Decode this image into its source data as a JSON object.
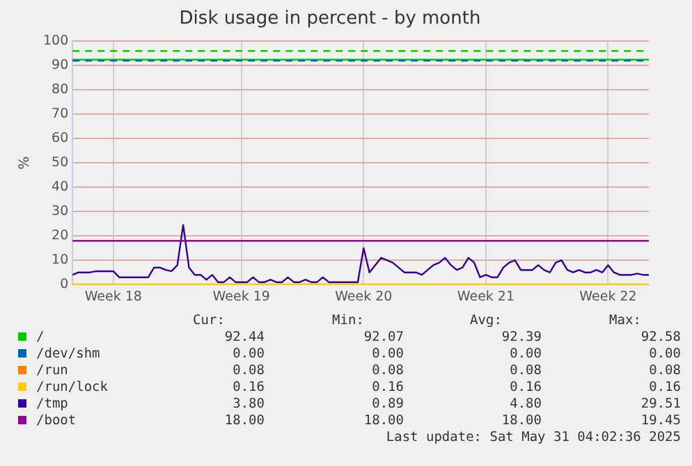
{
  "chart_data": {
    "type": "line",
    "title": "Disk usage in percent - by month",
    "ylabel": "%",
    "categories": [
      null,
      null,
      null,
      null,
      null,
      null,
      null,
      "Week 18",
      null,
      null,
      null,
      null,
      null,
      null,
      null,
      null,
      null,
      null,
      null,
      null,
      null,
      null,
      null,
      null,
      null,
      null,
      null,
      null,
      null,
      "Week 19",
      null,
      null,
      null,
      null,
      null,
      null,
      null,
      null,
      null,
      null,
      null,
      null,
      null,
      null,
      null,
      null,
      null,
      null,
      null,
      null,
      "Week 20",
      null,
      null,
      null,
      null,
      null,
      null,
      null,
      null,
      null,
      null,
      null,
      null,
      null,
      null,
      null,
      null,
      null,
      null,
      null,
      null,
      "Week 21",
      null,
      null,
      null,
      null,
      null,
      null,
      null,
      null,
      null,
      null,
      null,
      null,
      null,
      null,
      null,
      null,
      null,
      null,
      null,
      null,
      "Week 22",
      null,
      null,
      null,
      null,
      null,
      null,
      null
    ],
    "ylim": [
      0,
      100
    ],
    "yticks": [
      0,
      10,
      20,
      30,
      40,
      50,
      60,
      70,
      80,
      90,
      100
    ],
    "grid": true,
    "legend": "bottom",
    "marker": "none",
    "line_style": "solid",
    "series": [
      {
        "name": "/",
        "color": "#00cc00",
        "values": [
          92.4,
          92.4,
          92.4,
          92.4,
          92.4,
          92.4,
          92.4,
          92.4,
          92.4,
          92.4,
          92.4,
          92.4,
          92.4,
          92.4,
          92.4,
          92.4,
          92.4,
          92.4,
          92.4,
          92.4,
          92.4,
          92.4,
          92.4,
          92.4,
          92.4,
          92.4,
          92.4,
          92.4,
          92.4,
          92.4,
          92.4,
          92.4,
          92.4,
          92.4,
          92.4,
          92.4,
          92.4,
          92.4,
          92.4,
          92.4,
          92.4,
          92.4,
          92.4,
          92.4,
          92.4,
          92.4,
          92.4,
          92.4,
          92.4,
          92.4,
          92.4,
          92.4,
          92.4,
          92.4,
          92.4,
          92.4,
          92.4,
          92.4,
          92.4,
          92.4,
          92.4,
          92.4,
          92.4,
          92.4,
          92.4,
          92.4,
          92.4,
          92.4,
          92.4,
          92.4,
          92.4,
          92.4,
          92.4,
          92.4,
          92.4,
          92.4,
          92.4,
          92.4,
          92.4,
          92.4,
          92.4,
          92.4,
          92.4,
          92.4,
          92.4,
          92.4,
          92.4,
          92.4,
          92.4,
          92.4,
          92.4,
          92.4,
          92.4,
          92.4,
          92.4,
          92.4,
          92.4,
          92.4,
          92.4,
          92.4
        ]
      },
      {
        "name": "/dev/shm",
        "color": "#0066b3",
        "values": [
          null,
          null,
          null,
          null,
          null,
          null,
          null,
          null,
          null,
          null,
          null,
          null,
          null,
          null,
          null,
          null,
          null,
          null,
          null,
          null,
          null,
          null,
          null,
          null,
          null,
          null,
          null,
          null,
          null,
          null,
          null,
          null,
          null,
          null,
          null,
          null,
          null,
          null,
          null,
          null,
          null,
          null,
          null,
          null,
          null,
          null,
          null,
          null,
          null,
          null,
          null,
          null,
          null,
          null,
          null,
          null,
          null,
          null,
          null,
          null,
          null,
          null,
          null,
          null,
          null,
          null,
          null,
          null,
          null,
          null,
          null,
          null,
          null,
          null,
          null,
          null,
          null,
          null,
          null,
          null,
          null,
          null,
          null,
          null,
          null,
          null,
          null,
          null,
          null,
          null,
          null,
          null,
          null,
          null,
          null,
          null,
          null,
          null,
          null,
          null
        ]
      },
      {
        "name": "/run",
        "color": "#ff8000",
        "values": [
          null,
          null,
          null,
          null,
          null,
          null,
          null,
          null,
          null,
          null,
          null,
          null,
          null,
          null,
          null,
          null,
          null,
          null,
          null,
          null,
          null,
          null,
          null,
          null,
          null,
          null,
          null,
          null,
          null,
          null,
          null,
          null,
          null,
          null,
          null,
          null,
          null,
          null,
          null,
          null,
          null,
          null,
          null,
          null,
          null,
          null,
          null,
          null,
          null,
          null,
          null,
          null,
          null,
          null,
          null,
          null,
          null,
          null,
          null,
          null,
          null,
          null,
          null,
          null,
          null,
          null,
          null,
          null,
          null,
          null,
          null,
          null,
          null,
          null,
          null,
          null,
          null,
          null,
          null,
          null,
          null,
          null,
          null,
          null,
          null,
          null,
          null,
          null,
          null,
          null,
          null,
          null,
          null,
          null,
          null,
          null,
          null,
          null,
          null,
          null
        ]
      },
      {
        "name": "/run/lock",
        "color": "#ffcc00",
        "values": [
          0.16,
          0.16,
          0.16,
          0.16,
          0.16,
          0.16,
          0.16,
          0.16,
          0.16,
          0.16,
          0.16,
          0.16,
          0.16,
          0.16,
          0.16,
          0.16,
          0.16,
          0.16,
          0.16,
          0.16,
          0.16,
          0.16,
          0.16,
          0.16,
          0.16,
          0.16,
          0.16,
          0.16,
          0.16,
          0.16,
          0.16,
          0.16,
          0.16,
          0.16,
          0.16,
          0.16,
          0.16,
          0.16,
          0.16,
          0.16,
          0.16,
          0.16,
          0.16,
          0.16,
          0.16,
          0.16,
          0.16,
          0.16,
          0.16,
          0.16,
          0.16,
          0.16,
          0.16,
          0.16,
          0.16,
          0.16,
          0.16,
          0.16,
          0.16,
          0.16,
          0.16,
          0.16,
          0.16,
          0.16,
          0.16,
          0.16,
          0.16,
          0.16,
          0.16,
          0.16,
          0.16,
          0.16,
          0.16,
          0.16,
          0.16,
          0.16,
          0.16,
          0.16,
          0.16,
          0.16,
          0.16,
          0.16,
          0.16,
          0.16,
          0.16,
          0.16,
          0.16,
          0.16,
          0.16,
          0.16,
          0.16,
          0.16,
          0.16,
          0.16,
          0.16,
          0.16,
          0.16,
          0.16,
          0.16,
          0.16
        ]
      },
      {
        "name": "/tmp",
        "color": "#330099",
        "values": [
          4,
          5,
          5,
          5,
          5.5,
          5.5,
          5.5,
          5.5,
          3,
          3,
          3,
          3,
          3,
          3,
          7,
          7,
          6,
          5.5,
          8,
          24.5,
          7,
          4,
          4,
          2,
          4,
          1,
          1,
          3,
          1,
          1,
          1,
          3,
          1,
          1,
          2,
          1,
          1,
          3,
          1,
          1,
          2,
          1,
          1,
          3,
          1,
          1,
          1,
          1,
          1,
          1,
          15,
          5,
          8,
          11,
          10,
          9,
          7,
          5,
          5,
          5,
          4,
          6,
          8,
          9,
          11,
          8,
          6,
          7,
          11,
          9,
          3,
          4,
          3,
          3,
          7,
          9,
          10,
          6,
          6,
          6,
          8,
          6,
          5,
          9,
          10,
          6,
          5,
          6,
          5,
          5,
          6,
          5,
          8,
          5,
          4,
          4,
          4,
          4.5,
          4,
          4
        ]
      },
      {
        "name": "/boot",
        "color": "#990099",
        "values": [
          18,
          18,
          18,
          18,
          18,
          18,
          18,
          18,
          18,
          18,
          18,
          18,
          18,
          18,
          18,
          18,
          18,
          18,
          18,
          18,
          18,
          18,
          18,
          18,
          18,
          18,
          18,
          18,
          18,
          18,
          18,
          18,
          18,
          18,
          18,
          18,
          18,
          18,
          18,
          18,
          18,
          18,
          18,
          18,
          18,
          18,
          18,
          18,
          18,
          18,
          18,
          18,
          18,
          18,
          18,
          18,
          18,
          18,
          18,
          18,
          18,
          18,
          18,
          18,
          18,
          18,
          18,
          18,
          18,
          18,
          18,
          18,
          18,
          18,
          18,
          18,
          18,
          18,
          18,
          18,
          18,
          18,
          18,
          18,
          18,
          18,
          18,
          18,
          18,
          18,
          18,
          18,
          18,
          18,
          18,
          18,
          18,
          18,
          18,
          18
        ]
      }
    ],
    "ref_lines": [
      {
        "axis": "y",
        "value": 96,
        "color": "#00cc00",
        "line_style": "dashed"
      },
      {
        "axis": "y",
        "value": 92,
        "color": "#0066b3",
        "line_style": "dashed"
      }
    ],
    "annotations": [
      "Cur:",
      "Min:",
      "Avg:",
      "Max:",
      "92.44",
      "92.07",
      "92.39",
      "92.58",
      "0.00",
      "0.00",
      "0.00",
      "0.00",
      "0.08",
      "0.08",
      "0.08",
      "0.08",
      "0.16",
      "0.16",
      "0.16",
      "0.16",
      "3.80",
      "0.89",
      "4.80",
      "29.51",
      "18.00",
      "18.00",
      "18.00",
      "19.45",
      "Last update: Sat May 31 04:02:36 2025"
    ]
  }
}
